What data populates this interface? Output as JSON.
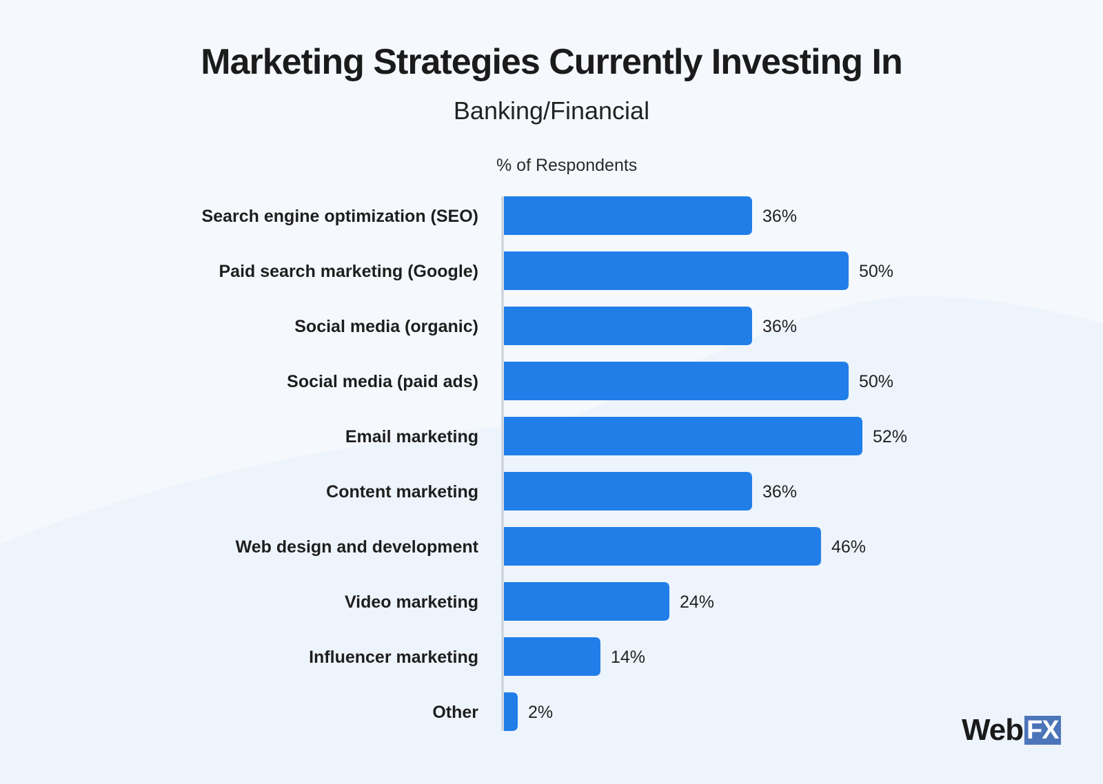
{
  "header": {
    "title": "Marketing Strategies Currently Investing In",
    "subtitle": "Banking/Financial"
  },
  "chart_data": {
    "type": "bar",
    "orientation": "horizontal",
    "title": "Marketing Strategies Currently Investing In",
    "subtitle": "Banking/Financial",
    "xlabel": "% of Respondents",
    "ylabel": "",
    "categories": [
      "Search engine optimization (SEO)",
      "Paid search marketing (Google)",
      "Social media (organic)",
      "Social media (paid ads)",
      "Email marketing",
      "Content marketing",
      "Web design and development",
      "Video marketing",
      "Influencer marketing",
      "Other"
    ],
    "values": [
      36,
      50,
      36,
      50,
      52,
      36,
      46,
      24,
      14,
      2
    ],
    "value_labels": [
      "36%",
      "50%",
      "36%",
      "50%",
      "52%",
      "36%",
      "46%",
      "24%",
      "14%",
      "2%"
    ],
    "xlim": [
      0,
      100
    ],
    "grid": false,
    "legend": "none",
    "bar_color": "#217ee8"
  },
  "branding": {
    "logo_word": "Web",
    "logo_box": "FX"
  },
  "colors": {
    "background": "#f5f8fd",
    "bar": "#217ee8",
    "logo_box": "#4c75b9"
  }
}
